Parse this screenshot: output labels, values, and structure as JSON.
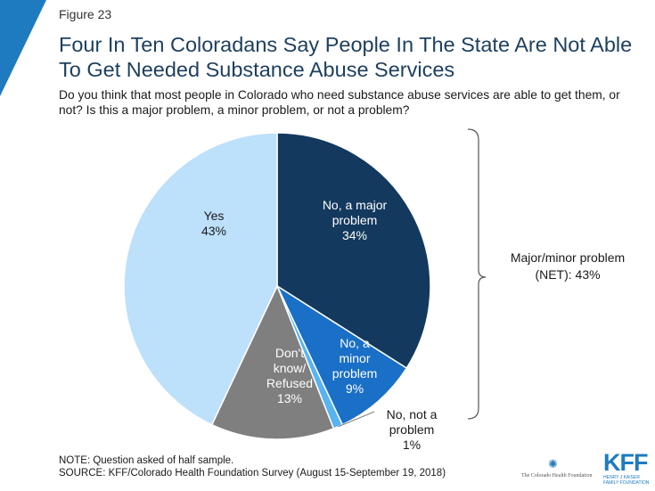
{
  "header": {
    "figure_label": "Figure 23",
    "title": "Four In Ten Coloradans Say People In The State Are Not Able To Get Needed Substance Abuse Services",
    "subtitle": "Do you think that most people in Colorado who need substance abuse services are able to get them, or not? Is this a major problem, a minor problem, or not a problem?"
  },
  "chart_data": {
    "type": "pie",
    "title": "",
    "slices": [
      {
        "lines": [
          "No, a major",
          "problem",
          "34%"
        ],
        "value": 34,
        "color": "#13395e",
        "label_color": "#ffffff"
      },
      {
        "lines": [
          "No, a",
          "minor",
          "problem",
          "9%"
        ],
        "value": 9,
        "color": "#1a6fc6",
        "label_color": "#ffffff"
      },
      {
        "lines": [
          "No, not a",
          "problem",
          "1%"
        ],
        "value": 1,
        "color": "#58b4f0",
        "label_color": "#1a1a1a"
      },
      {
        "lines": [
          "Don't",
          "know/",
          "Refused",
          "13%"
        ],
        "value": 13,
        "color": "#7f7f7f",
        "label_color": "#ffffff"
      },
      {
        "lines": [
          "Yes",
          "43%"
        ],
        "value": 43,
        "color": "#bde0fb",
        "label_color": "#1a1a1a"
      }
    ],
    "bracket_label": [
      "Major/minor problem",
      "(NET): 43%"
    ],
    "legend": "none"
  },
  "notes": {
    "note": "NOTE: Question asked of half sample.",
    "source": "SOURCE: KFF/Colorado Health Foundation Survey (August 15-September 19, 2018)"
  },
  "logos": {
    "chf": "The Colorado Health Foundation",
    "kff": "KFF",
    "kff_sub1": "HENRY J KAISER",
    "kff_sub2": "FAMILY FOUNDATION"
  },
  "colors": {
    "accent": "#1e7bc0",
    "title": "#1d3f5e"
  }
}
